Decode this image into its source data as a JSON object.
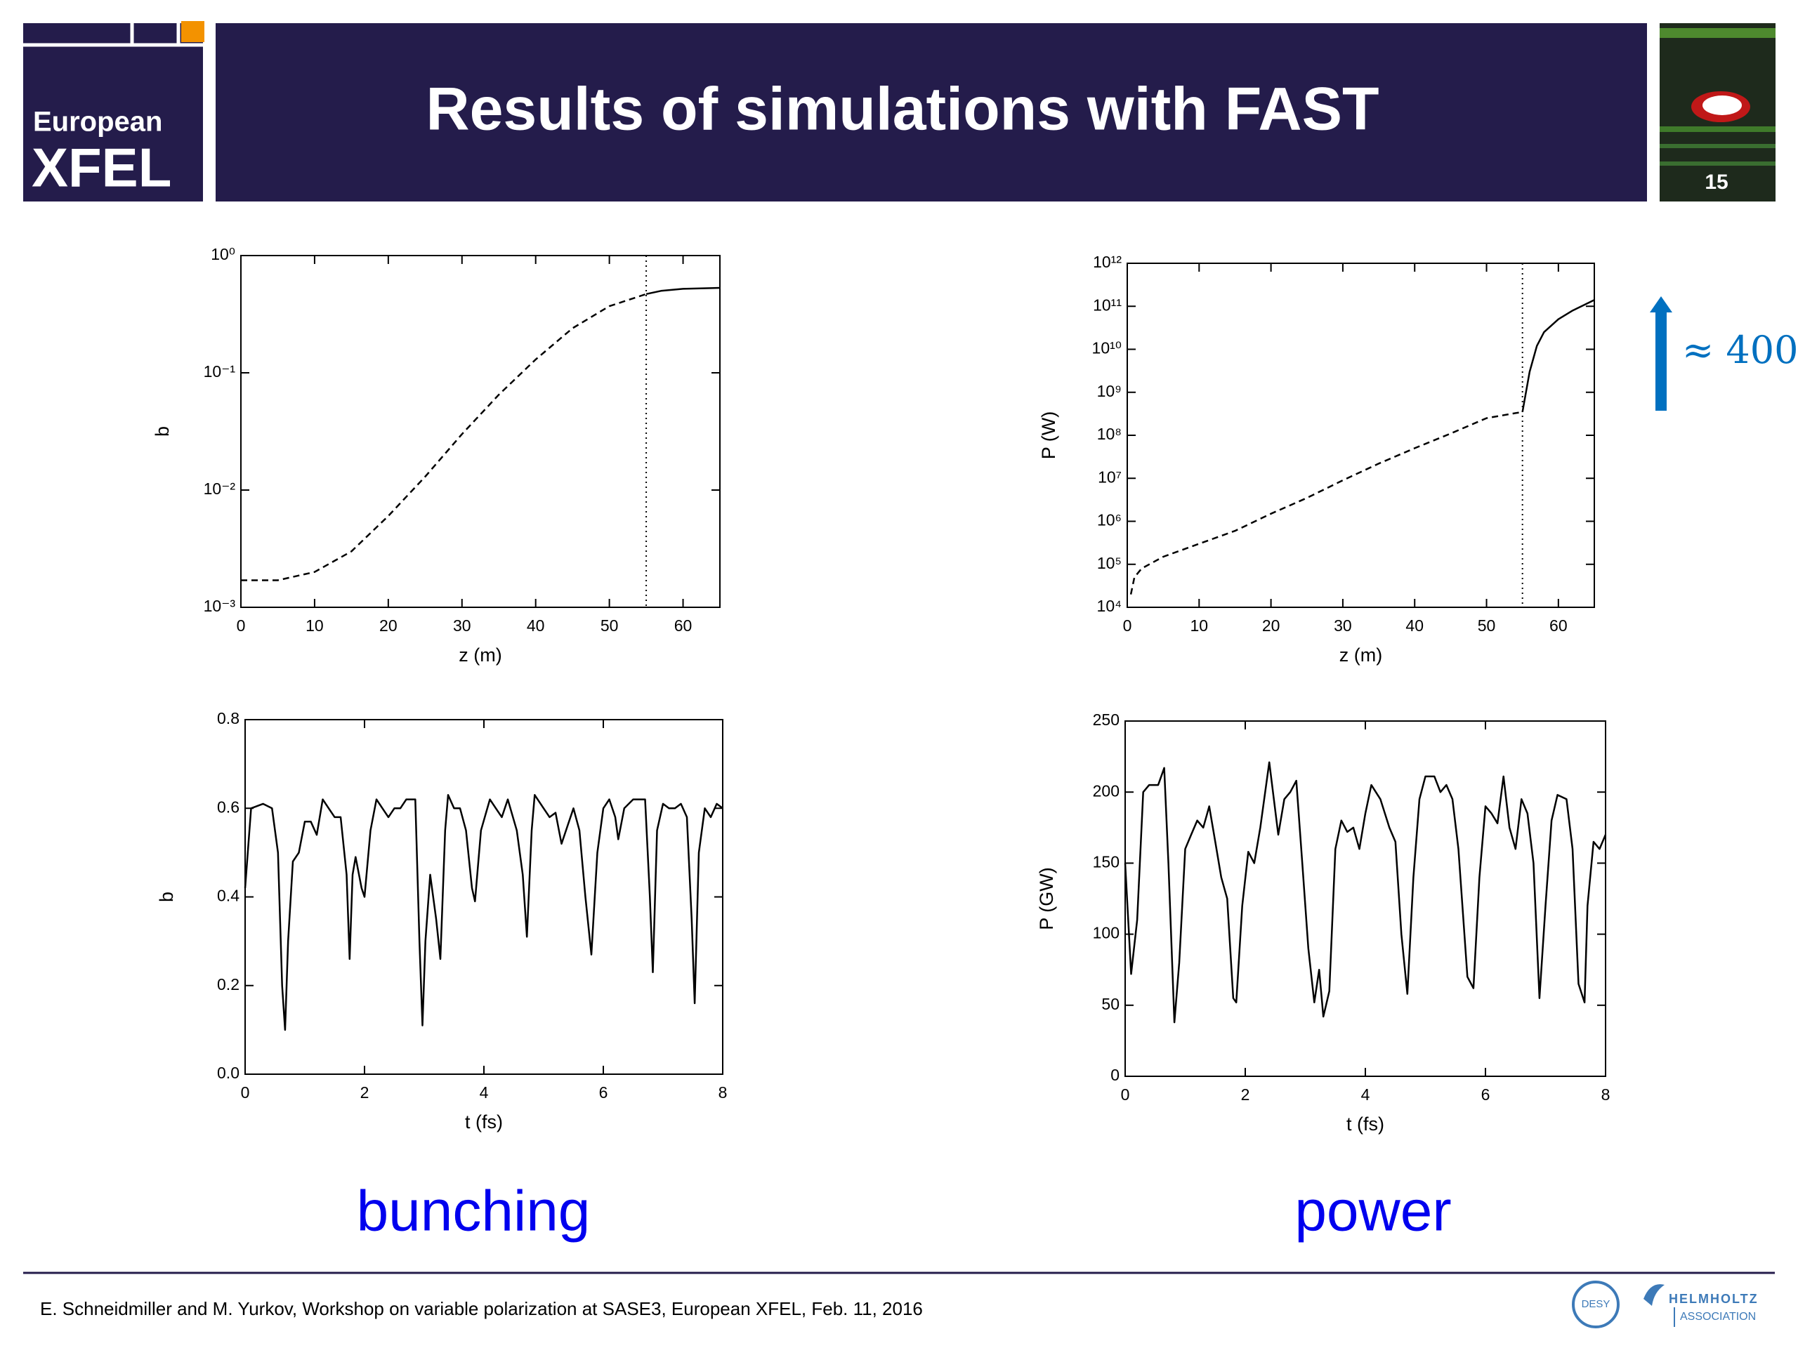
{
  "header": {
    "title": "Results of simulations with FAST",
    "logo_line1": "European",
    "logo_line2": "XFEL",
    "page_number": "15"
  },
  "chart_data": [
    {
      "type": "line",
      "log_y": true,
      "x_label": "z (m)",
      "y_label": "b",
      "xlim": [
        0,
        65
      ],
      "xticks": [
        0,
        10,
        20,
        30,
        40,
        50,
        60
      ],
      "ylim": [
        0.001,
        1
      ],
      "yticks": [
        {
          "value": 0.001,
          "label": "10⁻³"
        },
        {
          "value": 0.01,
          "label": "10⁻²"
        },
        {
          "value": 0.1,
          "label": "10⁻¹"
        },
        {
          "value": 1,
          "label": "10⁰"
        }
      ],
      "vline": 55,
      "series": [
        {
          "color": "#000000",
          "style": "dashed",
          "x": [
            0,
            5,
            10,
            15,
            20,
            25,
            30,
            35,
            40,
            45,
            50,
            55
          ],
          "values": [
            0.0017,
            0.0017,
            0.002,
            0.003,
            0.006,
            0.013,
            0.03,
            0.065,
            0.13,
            0.24,
            0.37,
            0.47
          ]
        },
        {
          "color": "#000000",
          "style": "solid",
          "x": [
            55,
            57,
            60,
            65
          ],
          "values": [
            0.47,
            0.5,
            0.52,
            0.53
          ]
        }
      ]
    },
    {
      "type": "line",
      "log_y": true,
      "x_label": "z (m)",
      "y_label": "P (W)",
      "xlim": [
        0,
        65
      ],
      "xticks": [
        0,
        10,
        20,
        30,
        40,
        50,
        60
      ],
      "ylim": [
        10000,
        1000000000000.0
      ],
      "yticks": [
        {
          "value": 10000.0,
          "label": "10⁴"
        },
        {
          "value": 100000.0,
          "label": "10⁵"
        },
        {
          "value": 1000000.0,
          "label": "10⁶"
        },
        {
          "value": 10000000.0,
          "label": "10⁷"
        },
        {
          "value": 100000000.0,
          "label": "10⁸"
        },
        {
          "value": 1000000000.0,
          "label": "10⁹"
        },
        {
          "value": 10000000000.0,
          "label": "10¹⁰"
        },
        {
          "value": 100000000000.0,
          "label": "10¹¹"
        },
        {
          "value": 1000000000000.0,
          "label": "10¹²"
        }
      ],
      "vline": 55,
      "annotation": "≈ 400",
      "annotation_color": "#0070c0",
      "series": [
        {
          "color": "#000000",
          "style": "dashed",
          "x": [
            0.5,
            1,
            2,
            5,
            10,
            15,
            20,
            25,
            30,
            35,
            40,
            45,
            50,
            55
          ],
          "values": [
            20000.0,
            50000.0,
            80000.0,
            150000.0,
            300000.0,
            600000.0,
            1500000.0,
            3500000.0,
            9000000.0,
            22000000.0,
            50000000.0,
            110000000.0,
            250000000.0,
            350000000.0
          ]
        },
        {
          "color": "#000000",
          "style": "solid",
          "x": [
            55,
            56,
            57,
            58,
            60,
            62,
            65
          ],
          "values": [
            350000000.0,
            3000000000.0,
            12000000000.0,
            25000000000.0,
            50000000000.0,
            80000000000.0,
            140000000000.0
          ]
        }
      ]
    },
    {
      "type": "line",
      "log_y": false,
      "x_label": "t (fs)",
      "y_label": "b",
      "xlim": [
        0,
        8
      ],
      "xticks": [
        0,
        2,
        4,
        6,
        8
      ],
      "ylim": [
        0,
        0.8
      ],
      "yticks": [
        {
          "value": 0,
          "label": "0.0"
        },
        0.2,
        0.4,
        0.6,
        0.8
      ],
      "series": [
        {
          "color": "#000000",
          "style": "solid",
          "x": [
            0,
            0.1,
            0.3,
            0.45,
            0.55,
            0.62,
            0.67,
            0.72,
            0.8,
            0.9,
            1.0,
            1.1,
            1.2,
            1.3,
            1.4,
            1.5,
            1.6,
            1.7,
            1.75,
            1.8,
            1.85,
            1.95,
            2.0,
            2.1,
            2.2,
            2.3,
            2.4,
            2.5,
            2.6,
            2.7,
            2.85,
            2.92,
            2.97,
            3.02,
            3.1,
            3.2,
            3.27,
            3.35,
            3.4,
            3.5,
            3.6,
            3.7,
            3.8,
            3.85,
            3.95,
            4.1,
            4.2,
            4.3,
            4.4,
            4.55,
            4.65,
            4.72,
            4.8,
            4.85,
            5.0,
            5.1,
            5.2,
            5.3,
            5.4,
            5.5,
            5.6,
            5.7,
            5.8,
            5.9,
            6.0,
            6.1,
            6.2,
            6.25,
            6.35,
            6.5,
            6.7,
            6.78,
            6.83,
            6.9,
            7.0,
            7.1,
            7.2,
            7.3,
            7.4,
            7.48,
            7.53,
            7.6,
            7.7,
            7.8,
            7.9,
            8.0
          ],
          "values": [
            0.42,
            0.6,
            0.61,
            0.6,
            0.5,
            0.2,
            0.1,
            0.3,
            0.48,
            0.5,
            0.57,
            0.57,
            0.54,
            0.62,
            0.6,
            0.58,
            0.58,
            0.45,
            0.26,
            0.45,
            0.49,
            0.42,
            0.4,
            0.55,
            0.62,
            0.6,
            0.58,
            0.6,
            0.6,
            0.62,
            0.62,
            0.3,
            0.11,
            0.3,
            0.45,
            0.35,
            0.26,
            0.55,
            0.63,
            0.6,
            0.6,
            0.55,
            0.42,
            0.39,
            0.55,
            0.62,
            0.6,
            0.58,
            0.62,
            0.55,
            0.45,
            0.31,
            0.55,
            0.63,
            0.6,
            0.58,
            0.59,
            0.52,
            0.56,
            0.6,
            0.55,
            0.4,
            0.27,
            0.5,
            0.6,
            0.62,
            0.58,
            0.53,
            0.6,
            0.62,
            0.62,
            0.4,
            0.23,
            0.55,
            0.61,
            0.6,
            0.6,
            0.61,
            0.58,
            0.35,
            0.16,
            0.5,
            0.6,
            0.58,
            0.61,
            0.6
          ]
        }
      ]
    },
    {
      "type": "line",
      "log_y": false,
      "x_label": "t (fs)",
      "y_label": "P (GW)",
      "xlim": [
        0,
        8
      ],
      "xticks": [
        0,
        2,
        4,
        6,
        8
      ],
      "ylim": [
        0,
        250
      ],
      "yticks": [
        0,
        50,
        100,
        150,
        200,
        250
      ],
      "series": [
        {
          "color": "#000000",
          "style": "solid",
          "x": [
            0,
            0.1,
            0.2,
            0.3,
            0.4,
            0.55,
            0.65,
            0.72,
            0.82,
            0.9,
            1.0,
            1.1,
            1.2,
            1.3,
            1.4,
            1.5,
            1.6,
            1.7,
            1.8,
            1.85,
            1.95,
            2.05,
            2.15,
            2.25,
            2.4,
            2.55,
            2.65,
            2.75,
            2.85,
            2.95,
            3.05,
            3.15,
            3.23,
            3.3,
            3.4,
            3.5,
            3.6,
            3.7,
            3.8,
            3.9,
            4.0,
            4.1,
            4.25,
            4.4,
            4.5,
            4.6,
            4.7,
            4.8,
            4.9,
            5.0,
            5.15,
            5.25,
            5.35,
            5.45,
            5.55,
            5.7,
            5.8,
            5.9,
            6.0,
            6.1,
            6.2,
            6.3,
            6.4,
            6.5,
            6.6,
            6.7,
            6.8,
            6.9,
            7.0,
            7.1,
            7.2,
            7.35,
            7.45,
            7.55,
            7.65,
            7.7,
            7.8,
            7.9,
            8.0
          ],
          "values": [
            150,
            72,
            110,
            200,
            205,
            205,
            217,
            150,
            38,
            80,
            160,
            170,
            180,
            175,
            190,
            165,
            140,
            125,
            55,
            52,
            120,
            158,
            150,
            175,
            221,
            170,
            195,
            200,
            208,
            150,
            90,
            52,
            75,
            42,
            60,
            160,
            180,
            172,
            175,
            160,
            185,
            205,
            195,
            175,
            165,
            100,
            58,
            140,
            195,
            211,
            211,
            200,
            205,
            195,
            160,
            70,
            62,
            140,
            190,
            185,
            178,
            211,
            175,
            160,
            195,
            185,
            150,
            55,
            120,
            180,
            198,
            195,
            160,
            65,
            52,
            120,
            165,
            160,
            170
          ]
        }
      ]
    }
  ],
  "captions": {
    "left": "bunching",
    "right": "power",
    "color": "#0000ee"
  },
  "footer": {
    "text": "E. Schneidmiller and M. Yurkov, Workshop on variable polarization at SASE3, European XFEL, Feb. 11, 2016",
    "desy": "DESY",
    "helmholtz": "HELMHOLTZ",
    "association": "ASSOCIATION"
  }
}
